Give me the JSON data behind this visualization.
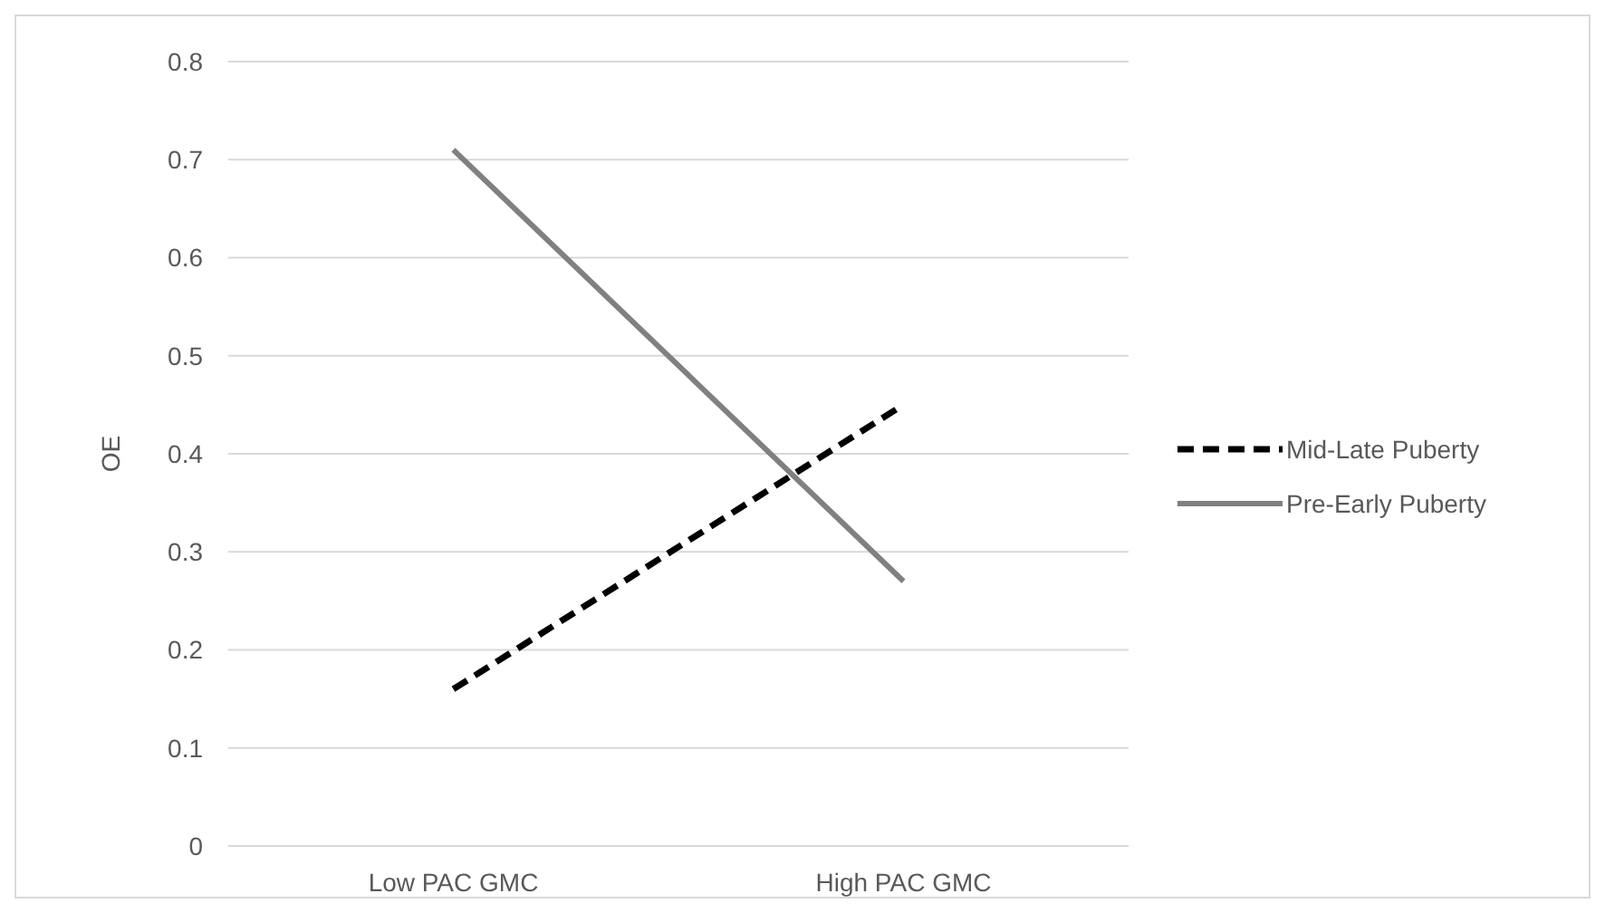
{
  "chart_data": {
    "type": "line",
    "ylabel": "OE",
    "categories": [
      "Low PAC GMC",
      "High PAC GMC"
    ],
    "series": [
      {
        "name": "Mid-Late Puberty",
        "color": "#000000",
        "values": [
          0.16,
          0.45
        ],
        "line_style": "dashed"
      },
      {
        "name": "Pre-Early Puberty",
        "color": "#808080",
        "values": [
          0.71,
          0.27
        ],
        "line_style": "solid"
      }
    ],
    "ylim": [
      0,
      0.8
    ],
    "yticks": [
      0,
      0.1,
      0.2,
      0.3,
      0.4,
      0.5,
      0.6,
      0.7,
      0.8
    ],
    "grid": "y",
    "legend": "right",
    "marker": "none"
  }
}
